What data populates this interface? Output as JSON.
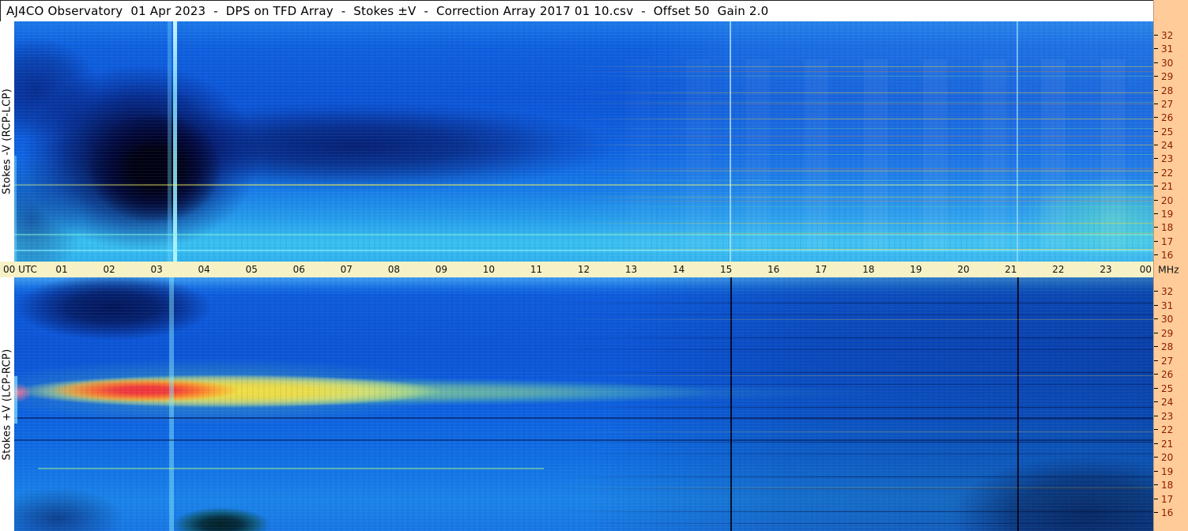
{
  "title_bar": {
    "text": "AJ4CO Observatory  01 Apr 2023  -  DPS on TFD Array  -  Stokes ±V  -  Correction Array 2017 01 10.csv  -  Offset 50  Gain 2.0"
  },
  "left_axis": {
    "top_label": "Stokes -V (RCP-LCP)",
    "bottom_label": "Stokes +V (LCP-RCP)"
  },
  "time_axis": {
    "start_label": "00 UTC",
    "hour_ticks": [
      "01",
      "02",
      "03",
      "04",
      "05",
      "06",
      "07",
      "08",
      "09",
      "10",
      "11",
      "12",
      "13",
      "14",
      "15",
      "16",
      "17",
      "18",
      "19",
      "20",
      "21",
      "22",
      "23"
    ],
    "end_label": "00",
    "unit_label": "MHz"
  },
  "freq_axis": {
    "ticks_mhz": [
      "32",
      "31",
      "30",
      "29",
      "28",
      "27",
      "26",
      "25",
      "24",
      "23",
      "22",
      "21",
      "20",
      "19",
      "18",
      "17",
      "16"
    ]
  },
  "colors": {
    "time_axis_bg": "#f7f2c6",
    "freq_scale_bg": "#ffcc99",
    "freq_label_color": "#8b1a00",
    "spectrogram_base_blue": "#0e5edd"
  },
  "chart_data": {
    "type": "heatmap",
    "title": "AJ4CO Observatory DPS dynamic spectra, Stokes ±V, 01 Apr 2023",
    "x_axis": {
      "label": "UTC",
      "unit": "hours",
      "range": [
        0,
        24
      ],
      "tick_interval": 1
    },
    "y_axis": {
      "label": "Frequency",
      "unit": "MHz",
      "range": [
        16,
        32
      ],
      "tick_interval": 1,
      "direction": "increasing upward"
    },
    "colormap": "intensity low to high: black/navy, blue, cyan, green, yellow, orange, red",
    "legend_position": "none",
    "grid": false,
    "panels": [
      {
        "name": "Stokes -V (RCP-LCP)",
        "position": "top",
        "features": [
          {
            "feature": "very dark low-intensity region",
            "utc_range": [
              0.7,
              3.5
            ],
            "mhz_range": [
              18,
              28
            ]
          },
          {
            "feature": "dark band fading toward later times",
            "utc_range": [
              3.5,
              9.0
            ],
            "mhz_range": [
              23,
              27
            ]
          },
          {
            "feature": "bright cyan-white vertical calibration line",
            "utc": 3.4
          },
          {
            "feature": "thin pale vertical lines",
            "utc": [
              15.1,
              21.2
            ]
          },
          {
            "feature": "dense yellow/orange RFI streaks",
            "utc_range": [
              12,
              24
            ],
            "mhz_range": [
              17,
              31
            ]
          },
          {
            "feature": "yellow interference line across full day",
            "mhz": 21
          },
          {
            "feature": "bright cyan rows",
            "mhz_range": [
              16,
              17.5
            ]
          },
          {
            "feature": "enhanced cyan-green patch",
            "utc_range": [
              22.5,
              24
            ],
            "mhz_range": [
              17,
              21
            ]
          }
        ]
      },
      {
        "name": "Stokes +V (LCP-RCP)",
        "position": "bottom",
        "features": [
          {
            "feature": "intense emission band with red-orange core",
            "utc_range": [
              0.5,
              3.5
            ],
            "mhz_range": [
              24,
              25.5
            ]
          },
          {
            "feature": "band fades yellow to green toward midday",
            "utc_range": [
              3.5,
              13
            ],
            "mhz_range": [
              24,
              25.5
            ]
          },
          {
            "feature": "dark patch",
            "utc_range": [
              0.2,
              3.7
            ],
            "mhz_range": [
              28.5,
              31.8
            ]
          },
          {
            "feature": "black vertical marker lines",
            "utc": [
              15.1,
              21.2
            ]
          },
          {
            "feature": "bright cyan vertical calibration line",
            "utc": 3.4
          },
          {
            "feature": "dark navy RFI streaks",
            "utc_range": [
              11,
              24
            ],
            "mhz_range": [
              16,
              31
            ]
          },
          {
            "feature": "dark region",
            "utc_range": [
              21.5,
              24
            ],
            "mhz_range": [
              17,
              20
            ]
          },
          {
            "feature": "dark teal blob at lowest frequencies",
            "utc_range": [
              3.5,
              5.2
            ],
            "mhz_range": [
              15.5,
              16.5
            ]
          }
        ]
      }
    ]
  }
}
